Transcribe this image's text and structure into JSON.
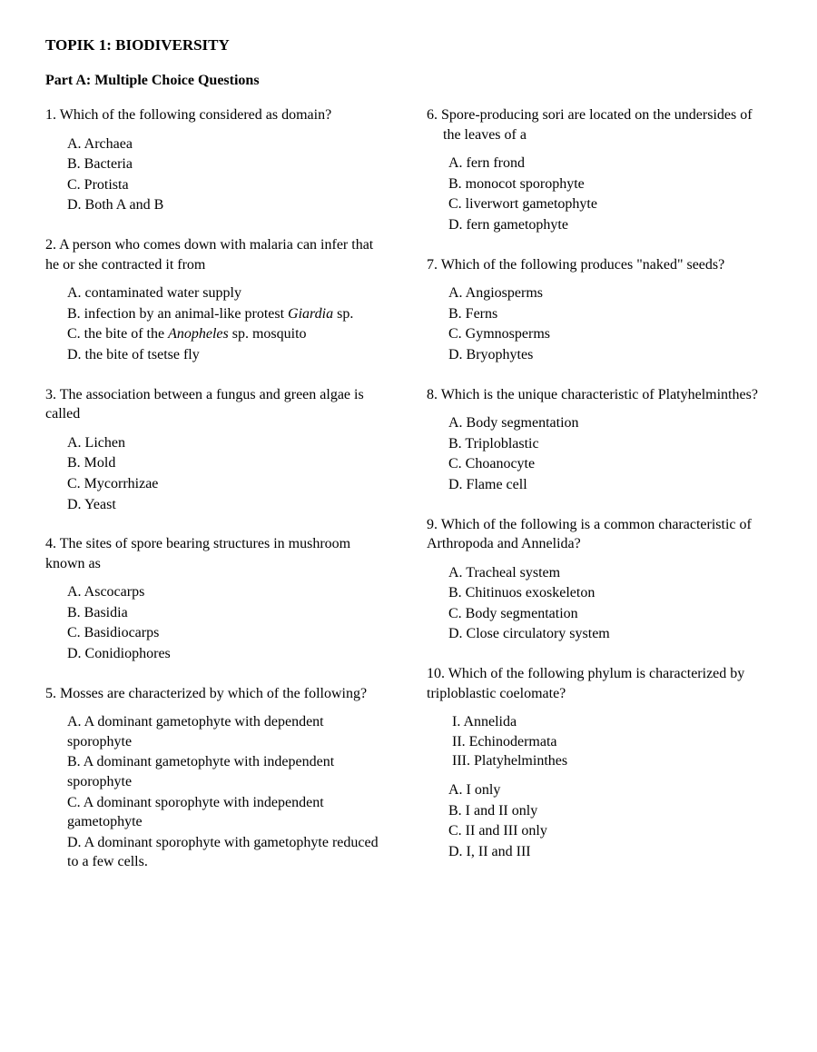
{
  "title": "TOPIK 1: BIODIVERSITY",
  "subtitle": "Part A: Multiple Choice Questions",
  "left": {
    "q1": {
      "text": "1. Which of the following considered as domain?",
      "a": "A. Archaea",
      "b": "B. Bacteria",
      "c": "C. Protista",
      "d": "D. Both A and B"
    },
    "q2": {
      "text": "2. A person who comes down with malaria can infer that he or she contracted it from",
      "a": "A. contaminated water supply",
      "b_pre": "B. infection by an animal-like protest ",
      "b_ital": "Giardia",
      "b_post": " sp.",
      "c_pre": "C. the bite of the ",
      "c_ital": "Anopheles",
      "c_post": " sp. mosquito",
      "d": "D. the bite of tsetse fly"
    },
    "q3": {
      "text": "3. The association between a fungus and green algae is called",
      "a": "A. Lichen",
      "b": "B. Mold",
      "c": "C. Mycorrhizae",
      "d": "D. Yeast"
    },
    "q4": {
      "text": "4. The sites of spore bearing structures in mushroom known as",
      "a": "A. Ascocarps",
      "b": "B. Basidia",
      "c": "C. Basidiocarps",
      "d": "D. Conidiophores"
    },
    "q5": {
      "text": "5. Mosses are characterized by which of the following?",
      "a": "A. A dominant gametophyte with dependent sporophyte",
      "b": "B. A dominant gametophyte with independent sporophyte",
      "c": "C. A dominant sporophyte with independent gametophyte",
      "d": "D. A dominant sporophyte with gametophyte reduced to a few cells."
    }
  },
  "right": {
    "q6": {
      "text": "6. Spore-producing sori are located on the undersides of the leaves of a",
      "a": "A. fern frond",
      "b": "B. monocot sporophyte",
      "c": "C. liverwort gametophyte",
      "d": "D. fern gametophyte"
    },
    "q7": {
      "text": "7. Which of the following produces \"naked\" seeds?",
      "a": "A. Angiosperms",
      "b": "B. Ferns",
      "c": "C. Gymnosperms",
      "d": "D. Bryophytes"
    },
    "q8": {
      "text": "8. Which is the unique characteristic of Platyhelminthes?",
      "a": "A. Body segmentation",
      "b": "B. Triploblastic",
      "c": "C. Choanocyte",
      "d": "D. Flame cell"
    },
    "q9": {
      "text": "9. Which of the following is a common characteristic of Arthropoda and Annelida?",
      "a": "A. Tracheal system",
      "b": "B. Chitinuos exoskeleton",
      "c": "C. Body segmentation",
      "d": "D. Close circulatory system"
    },
    "q10": {
      "text": "10. Which of the following phylum is characterized by triploblastic coelomate?",
      "i": "I. Annelida",
      "ii": "II. Echinodermata",
      "iii": "III. Platyhelminthes",
      "a": "A. I only",
      "b": "B. I and II only",
      "c": "C. II and III only",
      "d": "D. I, II and III"
    }
  }
}
